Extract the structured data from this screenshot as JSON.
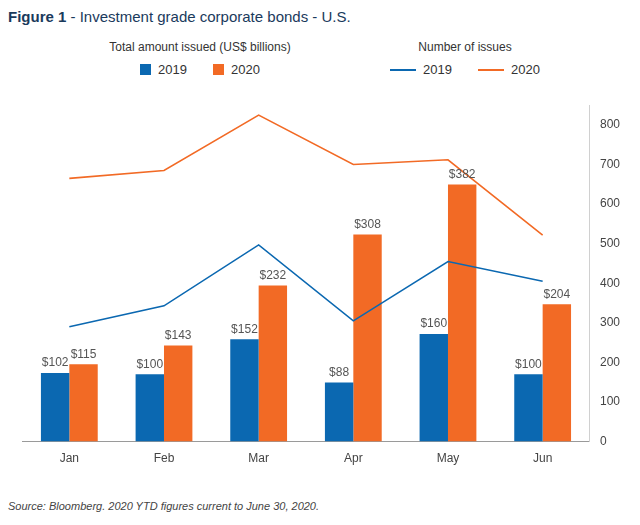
{
  "chart_data": {
    "type": "bar",
    "title": "Figure 1 - Investment grade corporate bonds - U.S.",
    "note": "Source: Bloomberg. 2020 YTD figures current to June 30, 2020.",
    "categories": [
      "Jan",
      "Feb",
      "Mar",
      "Apr",
      "May",
      "Jun"
    ],
    "ylim": [
      0,
      500
    ],
    "y2lim": [
      0,
      850
    ],
    "y2ticks": [
      0,
      100,
      200,
      300,
      400,
      500,
      600,
      700,
      800
    ],
    "grid": false,
    "legend": "top",
    "series": [
      {
        "name": "2019",
        "group": "Total amount issued (US$ billions)",
        "type": "bar",
        "color": "#0b68b1",
        "values": [
          102,
          100,
          152,
          88,
          160,
          100
        ],
        "value_labels": [
          "$102",
          "$100",
          "$152",
          "$88",
          "$160",
          "$100"
        ],
        "data_labels": true
      },
      {
        "name": "2020",
        "group": "Total amount issued (US$ billions)",
        "type": "bar",
        "color": "#f26a25",
        "values": [
          115,
          143,
          232,
          308,
          382,
          204
        ],
        "value_labels": [
          "$115",
          "$143",
          "$232",
          "$308",
          "$382",
          "$204"
        ],
        "data_labels": true
      },
      {
        "name": "2019",
        "group": "Number of issues",
        "type": "line",
        "axis": "y2",
        "color": "#0b68b1",
        "values": [
          290,
          343,
          497,
          305,
          455,
          405
        ]
      },
      {
        "name": "2020",
        "group": "Number of issues",
        "type": "line",
        "axis": "y2",
        "color": "#f26a25",
        "values": [
          665,
          685,
          825,
          700,
          712,
          522
        ]
      }
    ]
  }
}
